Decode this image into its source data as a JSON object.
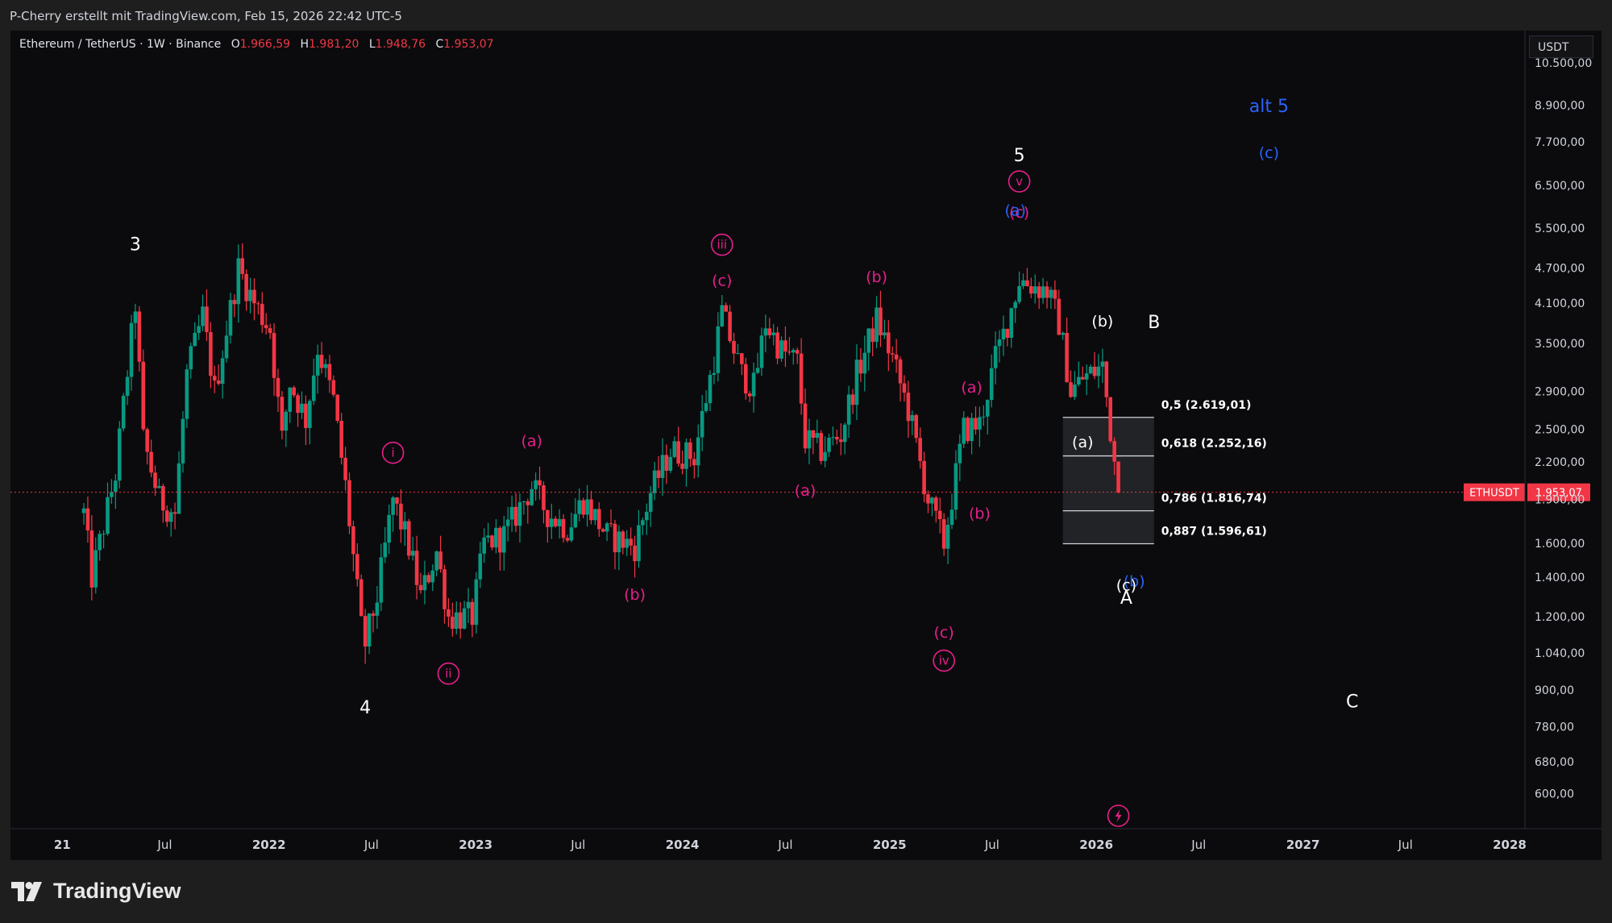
{
  "header": {
    "attribution": "P-Cherry erstellt mit TradingView.com, Feb 15, 2026 22:42 UTC-5"
  },
  "legend": {
    "symbol": "Ethereum / TetherUS · 1W · Binance",
    "open_key": "O",
    "open": "1.966,59",
    "high_key": "H",
    "high": "1.981,20",
    "low_key": "L",
    "low": "1.948,76",
    "close_key": "C",
    "close": "1.953,07"
  },
  "currency": "USDT",
  "brand": {
    "name": "TradingView"
  },
  "colors": {
    "up": "#089981",
    "down": "#f23645",
    "magenta": "#e91e8c",
    "blue": "#2962ff",
    "white": "#ffffff",
    "price_label": "#f23645"
  },
  "chart_data": {
    "type": "candlestick",
    "symbol": "ETHUSDT",
    "interval": "1W",
    "scale": "log",
    "ylim": [
      550,
      10500
    ],
    "xlim": [
      "2021-02-08",
      "2028-01-01"
    ],
    "y_ticks": [
      {
        "v": 10500,
        "l": "10.500,00"
      },
      {
        "v": 8900,
        "l": "8.900,00"
      },
      {
        "v": 7700,
        "l": "7.700,00"
      },
      {
        "v": 6500,
        "l": "6.500,00"
      },
      {
        "v": 5500,
        "l": "5.500,00"
      },
      {
        "v": 4700,
        "l": "4.700,00"
      },
      {
        "v": 4100,
        "l": "4.100,00"
      },
      {
        "v": 3500,
        "l": "3.500,00"
      },
      {
        "v": 2900,
        "l": "2.900,00"
      },
      {
        "v": 2500,
        "l": "2.500,00"
      },
      {
        "v": 2200,
        "l": "2.200,00"
      },
      {
        "v": 1900,
        "l": "1.900,00"
      },
      {
        "v": 1600,
        "l": "1.600,00"
      },
      {
        "v": 1400,
        "l": "1.400,00"
      },
      {
        "v": 1200,
        "l": "1.200,00"
      },
      {
        "v": 1040,
        "l": "1.040,00"
      },
      {
        "v": 900,
        "l": "900,00"
      },
      {
        "v": 780,
        "l": "780,00"
      },
      {
        "v": 680,
        "l": "680,00"
      },
      {
        "v": 600,
        "l": "600,00"
      }
    ],
    "x_ticks": [
      {
        "d": "2021-01-01",
        "l": "21"
      },
      {
        "d": "2021-07-01",
        "l": "Jul"
      },
      {
        "d": "2022-01-01",
        "l": "2022"
      },
      {
        "d": "2022-07-01",
        "l": "Jul"
      },
      {
        "d": "2023-01-01",
        "l": "2023"
      },
      {
        "d": "2023-07-01",
        "l": "Jul"
      },
      {
        "d": "2024-01-01",
        "l": "2024"
      },
      {
        "d": "2024-07-01",
        "l": "Jul"
      },
      {
        "d": "2025-01-01",
        "l": "2025"
      },
      {
        "d": "2025-07-01",
        "l": "Jul"
      },
      {
        "d": "2026-01-01",
        "l": "2026"
      },
      {
        "d": "2026-07-01",
        "l": "Jul"
      },
      {
        "d": "2027-01-01",
        "l": "2027"
      },
      {
        "d": "2027-07-01",
        "l": "Jul"
      },
      {
        "d": "2028-01-01",
        "l": "2028"
      }
    ],
    "price_anchors": [
      [
        "2021-02-08",
        1800
      ],
      [
        "2021-02-22",
        1400
      ],
      [
        "2021-04-05",
        2100
      ],
      [
        "2021-05-10",
        4100
      ],
      [
        "2021-05-24",
        2400
      ],
      [
        "2021-06-21",
        1900
      ],
      [
        "2021-07-19",
        1800
      ],
      [
        "2021-08-09",
        3100
      ],
      [
        "2021-09-06",
        3900
      ],
      [
        "2021-09-27",
        2900
      ],
      [
        "2021-11-08",
        4700
      ],
      [
        "2021-12-06",
        4100
      ],
      [
        "2022-01-03",
        3700
      ],
      [
        "2022-01-24",
        2400
      ],
      [
        "2022-02-07",
        3000
      ],
      [
        "2022-03-07",
        2600
      ],
      [
        "2022-03-28",
        3450
      ],
      [
        "2022-04-25",
        2800
      ],
      [
        "2022-05-16",
        2000
      ],
      [
        "2022-06-13",
        1150
      ],
      [
        "2022-06-20",
        1080
      ],
      [
        "2022-07-11",
        1300
      ],
      [
        "2022-08-08",
        1900
      ],
      [
        "2022-09-05",
        1580
      ],
      [
        "2022-09-26",
        1300
      ],
      [
        "2022-10-24",
        1550
      ],
      [
        "2022-11-14",
        1200
      ],
      [
        "2022-12-26",
        1200
      ],
      [
        "2023-01-16",
        1600
      ],
      [
        "2023-02-20",
        1650
      ],
      [
        "2023-04-10",
        2000
      ],
      [
        "2023-05-08",
        1800
      ],
      [
        "2023-06-12",
        1700
      ],
      [
        "2023-07-10",
        1900
      ],
      [
        "2023-08-21",
        1650
      ],
      [
        "2023-10-09",
        1580
      ],
      [
        "2023-11-06",
        1950
      ],
      [
        "2023-12-11",
        2300
      ],
      [
        "2024-01-22",
        2250
      ],
      [
        "2024-02-26",
        3300
      ],
      [
        "2024-03-11",
        3950
      ],
      [
        "2024-04-15",
        3100
      ],
      [
        "2024-05-06",
        2950
      ],
      [
        "2024-05-27",
        3800
      ],
      [
        "2024-06-24",
        3400
      ],
      [
        "2024-07-22",
        3250
      ],
      [
        "2024-08-05",
        2400
      ],
      [
        "2024-09-02",
        2300
      ],
      [
        "2024-10-07",
        2450
      ],
      [
        "2024-11-04",
        3100
      ],
      [
        "2024-12-09",
        3850
      ],
      [
        "2025-01-06",
        3300
      ],
      [
        "2025-02-03",
        2700
      ],
      [
        "2025-03-10",
        1900
      ],
      [
        "2025-04-07",
        1600
      ],
      [
        "2025-05-12",
        2500
      ],
      [
        "2025-06-09",
        2550
      ],
      [
        "2025-07-07",
        3300
      ],
      [
        "2025-07-28",
        3800
      ],
      [
        "2025-08-18",
        4500
      ],
      [
        "2025-09-08",
        4400
      ],
      [
        "2025-10-06",
        4300
      ],
      [
        "2025-10-27",
        3800
      ],
      [
        "2025-11-17",
        2900
      ],
      [
        "2025-12-08",
        3050
      ],
      [
        "2026-01-12",
        3200
      ],
      [
        "2026-01-26",
        2500
      ],
      [
        "2026-02-09",
        1953
      ]
    ],
    "annotations": [
      {
        "t": "3",
        "d": "2021-05-10",
        "p": 5150,
        "c": "white"
      },
      {
        "t": "4",
        "d": "2022-06-20",
        "p": 840,
        "c": "white"
      },
      {
        "t": "5",
        "d": "2025-08-18",
        "p": 7300,
        "c": "white"
      },
      {
        "t": "i",
        "d": "2022-08-08",
        "p": 2280,
        "c": "magenta",
        "circle": true
      },
      {
        "t": "ii",
        "d": "2022-11-14",
        "p": 960,
        "c": "magenta",
        "circle": true
      },
      {
        "t": "iii",
        "d": "2024-03-11",
        "p": 5150,
        "c": "magenta",
        "circle": true
      },
      {
        "t": "iv",
        "d": "2025-04-07",
        "p": 1010,
        "c": "magenta",
        "circle": true
      },
      {
        "t": "v",
        "d": "2025-08-18",
        "p": 6600,
        "c": "magenta",
        "circle": true
      },
      {
        "t": "(a)",
        "d": "2023-04-10",
        "p": 2390,
        "c": "magenta"
      },
      {
        "t": "(b)",
        "d": "2023-10-09",
        "p": 1310,
        "c": "magenta"
      },
      {
        "t": "(c)",
        "d": "2024-03-11",
        "p": 4480,
        "c": "magenta"
      },
      {
        "t": "(a)",
        "d": "2024-08-05",
        "p": 1970,
        "c": "magenta"
      },
      {
        "t": "(b)",
        "d": "2024-12-09",
        "p": 4550,
        "c": "magenta"
      },
      {
        "t": "(c)",
        "d": "2025-04-07",
        "p": 1130,
        "c": "magenta"
      },
      {
        "t": "(a)",
        "d": "2025-05-26",
        "p": 2950,
        "c": "magenta"
      },
      {
        "t": "(b)",
        "d": "2025-06-09",
        "p": 1800,
        "c": "magenta"
      },
      {
        "t": "(c)",
        "d": "2025-08-18",
        "p": 5850,
        "c": "magenta"
      },
      {
        "t": "(a)",
        "d": "2025-08-11",
        "p": 5900,
        "c": "blue"
      },
      {
        "t": "(b)",
        "d": "2026-03-09",
        "p": 1380,
        "c": "blue"
      },
      {
        "t": "(c)",
        "d": "2026-11-02",
        "p": 7400,
        "c": "blue"
      },
      {
        "t": "alt 5",
        "d": "2026-11-02",
        "p": 8850,
        "c": "blue"
      },
      {
        "t": "(b)",
        "d": "2026-01-12",
        "p": 3820,
        "c": "white"
      },
      {
        "t": "(a)",
        "d": "2025-12-08",
        "p": 2380,
        "c": "white"
      },
      {
        "t": "(c)",
        "d": "2026-02-23",
        "p": 1360,
        "c": "white"
      },
      {
        "t": "A",
        "d": "2026-02-23",
        "p": 1290,
        "c": "white"
      },
      {
        "t": "B",
        "d": "2026-04-13",
        "p": 3800,
        "c": "white"
      },
      {
        "t": "C",
        "d": "2027-03-29",
        "p": 860,
        "c": "white"
      }
    ],
    "fib_levels": [
      {
        "label": "0,5 (2.619,01)",
        "v": 2619.01
      },
      {
        "label": "0,618 (2.252,16)",
        "v": 2252.16
      },
      {
        "label": "0,786 (1.816,74)",
        "v": 1816.74
      },
      {
        "label": "0,887 (1.596,61)",
        "v": 1596.61
      }
    ],
    "fib_range": {
      "from": "2025-11-03",
      "to": "2026-04-13"
    },
    "last_price": {
      "symbol": "ETHUSDT",
      "value": 1953.07,
      "label": "1.953,07"
    },
    "event_marker": {
      "d": "2026-02-09"
    }
  }
}
